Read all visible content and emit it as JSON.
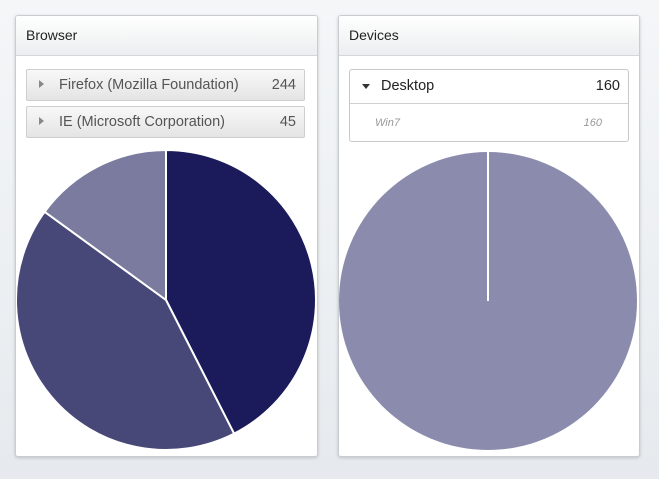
{
  "browser_panel": {
    "title": "Browser",
    "rows": [
      {
        "label": "Firefox (Mozilla Foundation)",
        "count": "244"
      },
      {
        "label": "IE (Microsoft Corporation)",
        "count": "45"
      }
    ]
  },
  "devices_panel": {
    "title": "Devices",
    "group": {
      "label": "Desktop",
      "count": "160"
    },
    "sub_item": {
      "label": "Win7",
      "count": "160"
    }
  },
  "colors": {
    "slice_dark": "#1b1b5c",
    "slice_mid": "#474778",
    "slice_light": "#7b7b9f",
    "slice_device": "#8b8bad"
  },
  "chart_data": [
    {
      "type": "pie",
      "title": "",
      "slices": [
        {
          "value": 42.5,
          "color": "#1b1b5c"
        },
        {
          "value": 42.5,
          "color": "#474778"
        },
        {
          "value": 15.0,
          "color": "#7b7b9f"
        }
      ]
    },
    {
      "type": "pie",
      "title": "",
      "slices": [
        {
          "value": 100,
          "color": "#8b8bad"
        }
      ]
    }
  ]
}
